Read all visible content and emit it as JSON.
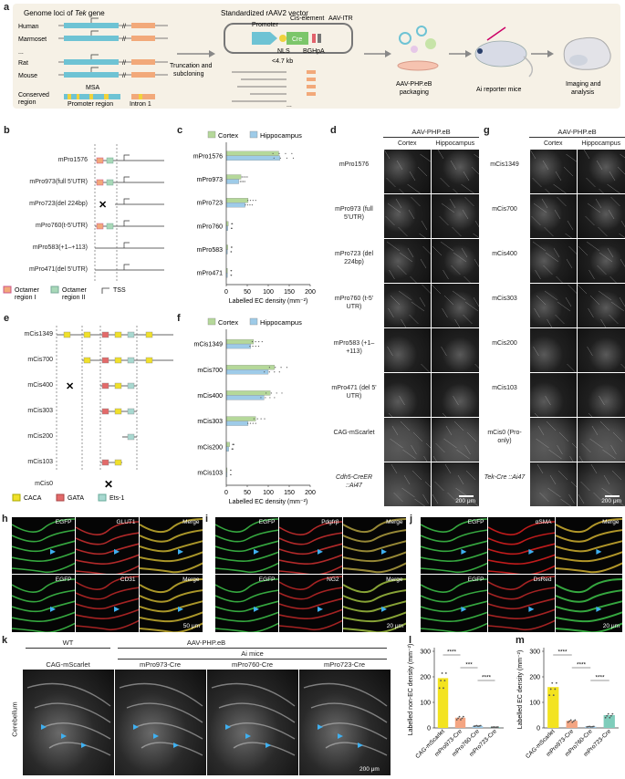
{
  "panel_a": {
    "label": "a",
    "title_left": "Genome loci of",
    "title_left_gene": "Tek",
    "title_left_suffix": "gene",
    "species": [
      "Human",
      "Marmoset",
      "...",
      "Rat",
      "Mouse"
    ],
    "msa": "MSA",
    "conserved": "Conserved region",
    "promoter_region": "Promoter region",
    "intron": "Intron 1",
    "arrow1": "Truncation and subcloning",
    "vector_title": "Standardized rAAV2 vector",
    "promoter": "Promoter",
    "cis_element": "Cis-element",
    "itr": "AAV-ITR",
    "cre": "Cre",
    "nls": "NLS",
    "bghpa": "BGHpA",
    "size": "<4.7 kb",
    "ellipsis": "...",
    "step1": "AAV-PHP.eB packaging",
    "step2": "Ai reporter mice",
    "step3": "Imaging and analysis"
  },
  "panel_b": {
    "label": "b",
    "constructs": [
      "mPro1576",
      "mPro973(full 5'UTR)",
      "mPro723(del 224bp)",
      "mPro760(t-5'UTR)",
      "mPro583(+1–+113)",
      "mPro471(del 5'UTR)"
    ],
    "legend": [
      "Octamer region I",
      "Octamer region II",
      "TSS"
    ]
  },
  "panel_c": {
    "label": "c",
    "chart_data": {
      "type": "bar",
      "orientation": "horizontal",
      "categories": [
        "mPro1576",
        "mPro973",
        "mPro723",
        "mPro760",
        "mPro583",
        "mPro471"
      ],
      "series": [
        {
          "name": "Cortex",
          "color": "#b5d89a",
          "values": [
            125,
            35,
            52,
            5,
            4,
            3
          ]
        },
        {
          "name": "Hippocampus",
          "color": "#9ecbe8",
          "values": [
            128,
            30,
            45,
            4,
            3,
            3
          ]
        }
      ],
      "xlabel": "Labelled EC density (mm⁻²)",
      "xlim": [
        0,
        200
      ],
      "xticks": [
        "0",
        "50",
        "100",
        "150",
        "200"
      ]
    }
  },
  "panel_d": {
    "label": "d",
    "header": "AAV-PHP.eB",
    "col1": "Cortex",
    "col2": "Hippocampus",
    "rows": [
      "mPro1576",
      "mPro973 (full 5'UTR)",
      "mPro723 (del 224bp)",
      "mPro760 (t-5' UTR)",
      "mPro583 (+1–+113)",
      "mPro471 (del 5' UTR)",
      "CAG-mScarlet",
      "Cdh5-CreER ::Ai47"
    ],
    "scale": "200 μm"
  },
  "panel_e": {
    "label": "e",
    "constructs": [
      "mCis1349",
      "mCis700",
      "mCis400",
      "mCis303",
      "mCis200",
      "mCis103",
      "mCis0"
    ],
    "legend": [
      "CACA",
      "GATA",
      "Ets-1"
    ]
  },
  "panel_f": {
    "label": "f",
    "chart_data": {
      "type": "bar",
      "orientation": "horizontal",
      "categories": [
        "mCis1349",
        "mCis700",
        "mCis400",
        "mCis303",
        "mCis200",
        "mCis103"
      ],
      "series": [
        {
          "name": "Cortex",
          "color": "#b5d89a",
          "values": [
            65,
            115,
            105,
            70,
            8,
            2
          ]
        },
        {
          "name": "Hippocampus",
          "color": "#9ecbe8",
          "values": [
            58,
            100,
            90,
            52,
            6,
            2
          ]
        }
      ],
      "xlabel": "Labelled EC density (mm⁻²)",
      "xlim": [
        0,
        200
      ],
      "xticks": [
        "0",
        "50",
        "100",
        "150",
        "200"
      ]
    }
  },
  "panel_g": {
    "label": "g",
    "header": "AAV-PHP.eB",
    "col1": "Cortex",
    "col2": "Hippocampus",
    "rows": [
      "mCis1349",
      "mCis700",
      "mCis400",
      "mCis303",
      "mCis200",
      "mCis103",
      "mCis0 (Pro-only)",
      "Tek-Cre ::Ai47"
    ],
    "scale": "200 μm"
  },
  "panel_h": {
    "label": "h",
    "labels": [
      "EGFP",
      "GLUT1",
      "Merge",
      "EGFP",
      "CD31",
      "Merge"
    ],
    "scale": "50 μm"
  },
  "panel_i": {
    "label": "i",
    "labels": [
      "EGFP",
      "Pdgfrβ",
      "Merge",
      "EGFP",
      "NG2",
      "Merge"
    ],
    "scale": "20 μm"
  },
  "panel_j": {
    "label": "j",
    "labels": [
      "EGFP",
      "αSMA",
      "Merge",
      "EGFP",
      "DsRed",
      ""
    ],
    "scale": "20 μm"
  },
  "panel_k": {
    "label": "k",
    "group_wt": "WT",
    "header": "AAV-PHP.eB",
    "group_ai": "Ai mice",
    "cols": [
      "CAG-mScarlet",
      "mPro973-Cre",
      "mPro760-Cre",
      "mPro723-Cre"
    ],
    "side": "Cerebellum",
    "scale": "200 μm"
  },
  "panel_l": {
    "label": "l",
    "chart_data": {
      "type": "bar",
      "categories": [
        "CAG-mScarlet",
        "mPro973-Cre",
        "mPro760-Cre",
        "mPro723-Cre"
      ],
      "values": [
        195,
        40,
        8,
        3
      ],
      "colors": [
        "#f3e320",
        "#f4a582",
        "#9ecbe8",
        "#7fcdbb"
      ],
      "ylabel": "Labelled non-EC density (mm⁻²)",
      "ylim": [
        0,
        300
      ],
      "yticks": [
        "0",
        "100",
        "200",
        "300"
      ],
      "significance": [
        "****",
        "***",
        "****"
      ]
    }
  },
  "panel_m": {
    "label": "m",
    "chart_data": {
      "type": "bar",
      "categories": [
        "CAG-mScarlet",
        "mPro973-Cre",
        "mPro760-Cre",
        "mPro723-Cre"
      ],
      "values": [
        160,
        28,
        5,
        50
      ],
      "colors": [
        "#f3e320",
        "#f4a582",
        "#9ecbe8",
        "#7fcdbb"
      ],
      "ylabel": "Labelled EC density (mm⁻²)",
      "ylim": [
        0,
        300
      ],
      "yticks": [
        "0",
        "100",
        "200",
        "300"
      ],
      "significance": [
        "****",
        "****",
        "****"
      ]
    }
  }
}
